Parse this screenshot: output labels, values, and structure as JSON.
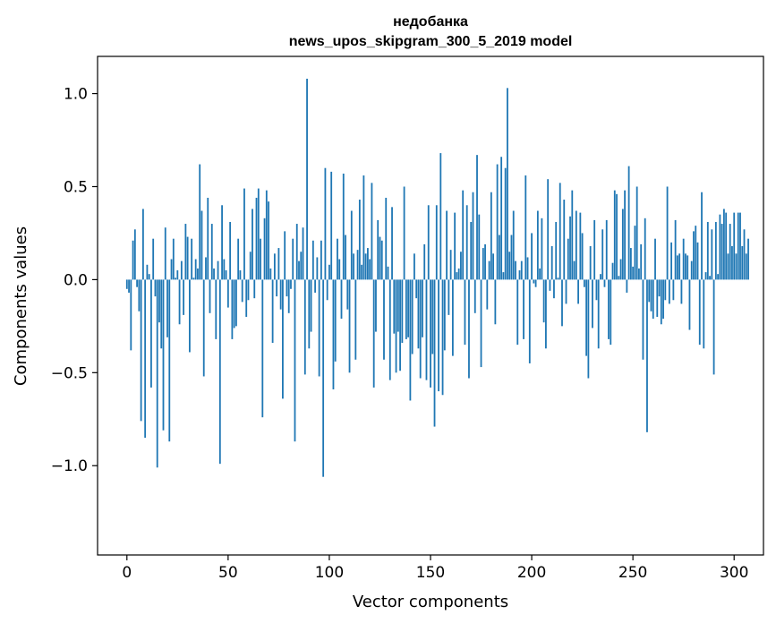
{
  "chart_data": {
    "type": "bar",
    "title_lines": [
      "недобанка",
      "news_upos_skipgram_300_5_2019 model"
    ],
    "xlabel": "Vector components",
    "ylabel": "Components values",
    "xlim": [
      -14.5,
      314.5
    ],
    "ylim": [
      -1.48,
      1.2
    ],
    "xticks": [
      {
        "value": 0,
        "label": "0"
      },
      {
        "value": 50,
        "label": "50"
      },
      {
        "value": 100,
        "label": "100"
      },
      {
        "value": 150,
        "label": "150"
      },
      {
        "value": 200,
        "label": "200"
      },
      {
        "value": 250,
        "label": "250"
      },
      {
        "value": 300,
        "label": "300"
      }
    ],
    "yticks": [
      {
        "value": -1.0,
        "label": "−1.0"
      },
      {
        "value": -0.5,
        "label": "−0.5"
      },
      {
        "value": 0.0,
        "label": "0.0"
      },
      {
        "value": 0.5,
        "label": "0.5"
      },
      {
        "value": 1.0,
        "label": "1.0"
      }
    ],
    "bar_color": "#1f77b4",
    "grid": false,
    "legend": "none",
    "values": [
      -0.05,
      -0.07,
      -0.38,
      0.21,
      0.27,
      -0.04,
      -0.17,
      -0.76,
      0.38,
      -0.85,
      0.08,
      0.03,
      -0.58,
      0.22,
      -0.09,
      -1.01,
      -0.23,
      -0.37,
      -0.81,
      0.28,
      -0.31,
      -0.87,
      0.11,
      0.22,
      0.01,
      0.05,
      -0.24,
      0.1,
      -0.19,
      0.3,
      0.23,
      -0.39,
      0.22,
      0.01,
      0.11,
      0.06,
      0.62,
      0.37,
      -0.52,
      0.12,
      0.44,
      -0.18,
      0.3,
      0.06,
      -0.32,
      0.1,
      -0.99,
      0.4,
      0.11,
      0.05,
      -0.15,
      0.31,
      -0.32,
      -0.26,
      -0.25,
      0.22,
      0.05,
      -0.12,
      0.49,
      -0.2,
      -0.11,
      0.15,
      0.38,
      -0.1,
      0.44,
      0.49,
      0.22,
      -0.74,
      0.33,
      0.48,
      0.42,
      0.06,
      -0.34,
      0.14,
      -0.09,
      0.17,
      -0.16,
      -0.64,
      0.26,
      -0.09,
      -0.18,
      -0.05,
      0.22,
      -0.87,
      0.3,
      0.1,
      0.15,
      0.28,
      -0.51,
      1.08,
      -0.37,
      -0.28,
      0.21,
      -0.07,
      0.12,
      -0.52,
      0.21,
      -1.06,
      0.6,
      -0.11,
      0.08,
      0.58,
      -0.59,
      -0.44,
      0.22,
      0.11,
      -0.21,
      0.57,
      0.24,
      -0.16,
      -0.5,
      0.37,
      0.14,
      -0.43,
      0.16,
      0.43,
      0.08,
      0.56,
      0.14,
      0.17,
      0.11,
      0.52,
      -0.58,
      -0.28,
      0.32,
      0.23,
      0.21,
      -0.43,
      0.44,
      0.07,
      -0.54,
      0.39,
      -0.29,
      -0.5,
      -0.28,
      -0.49,
      -0.34,
      0.5,
      -0.32,
      -0.31,
      -0.65,
      -0.4,
      0.14,
      -0.1,
      -0.37,
      -0.53,
      -0.31,
      0.19,
      -0.54,
      0.4,
      -0.58,
      -0.4,
      -0.79,
      0.4,
      -0.6,
      0.68,
      -0.62,
      -0.38,
      0.37,
      -0.19,
      0.16,
      -0.41,
      0.36,
      0.04,
      0.06,
      0.15,
      0.48,
      -0.35,
      0.4,
      -0.53,
      0.31,
      0.47,
      -0.18,
      0.67,
      0.35,
      -0.47,
      0.17,
      0.19,
      -0.16,
      0.1,
      0.47,
      0.14,
      -0.24,
      0.62,
      0.24,
      0.66,
      0.04,
      0.6,
      1.03,
      0.15,
      0.24,
      0.37,
      0.1,
      -0.35,
      0.05,
      0.1,
      -0.32,
      0.56,
      0.12,
      -0.45,
      0.25,
      -0.02,
      -0.04,
      0.37,
      0.06,
      0.33,
      -0.23,
      -0.37,
      0.54,
      -0.06,
      0.18,
      -0.1,
      0.31,
      0.01,
      0.52,
      -0.25,
      0.43,
      -0.13,
      0.22,
      0.34,
      0.48,
      0.1,
      0.37,
      -0.13,
      0.36,
      0.25,
      -0.04,
      -0.41,
      -0.53,
      0.18,
      -0.26,
      0.32,
      -0.11,
      -0.37,
      0.03,
      0.27,
      -0.04,
      0.32,
      -0.32,
      -0.35,
      0.09,
      0.48,
      0.46,
      0.02,
      0.11,
      0.38,
      0.48,
      -0.07,
      0.61,
      0.17,
      0.07,
      0.29,
      0.5,
      0.06,
      0.19,
      -0.43,
      0.33,
      -0.82,
      -0.12,
      -0.17,
      -0.21,
      0.22,
      -0.2,
      -0.09,
      -0.24,
      -0.21,
      -0.11,
      0.5,
      -0.13,
      0.2,
      -0.11,
      0.32,
      0.13,
      0.14,
      -0.13,
      0.22,
      0.14,
      0.13,
      -0.27,
      0.1,
      0.26,
      0.29,
      0.2,
      -0.35,
      0.47,
      -0.37,
      0.04,
      0.31,
      0.02,
      0.27,
      -0.51,
      0.31,
      0.03,
      0.35,
      0.3,
      0.38,
      0.36,
      0.14,
      0.3,
      0.18,
      0.36,
      0.14,
      0.36,
      0.36,
      0.18,
      0.27,
      0.14,
      0.22
    ]
  }
}
